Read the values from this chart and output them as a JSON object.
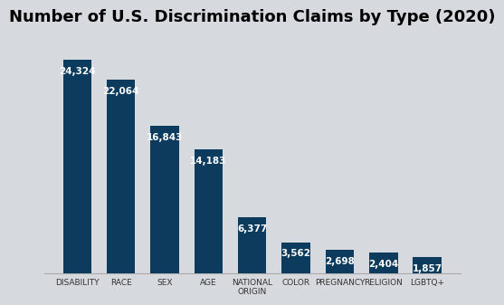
{
  "title": "Number of U.S. Discrimination Claims by Type (2020)",
  "categories": [
    "DISABILITY",
    "RACE",
    "SEX",
    "AGE",
    "NATIONAL\nORIGIN",
    "COLOR",
    "PREGNANCY",
    "RELIGION",
    "LGBTQ+"
  ],
  "values": [
    24324,
    22064,
    16843,
    14183,
    6377,
    3562,
    2698,
    2404,
    1857
  ],
  "labels": [
    "24,324",
    "22,064",
    "16,843",
    "14,183",
    "6,377",
    "3,562",
    "2,698",
    "2,404",
    "1,857"
  ],
  "bar_color": "#0d3b5e",
  "background_color": "#d6d9de",
  "title_fontsize": 13,
  "label_fontsize": 7.5,
  "tick_fontsize": 6.5,
  "ylim": [
    0,
    27000
  ]
}
